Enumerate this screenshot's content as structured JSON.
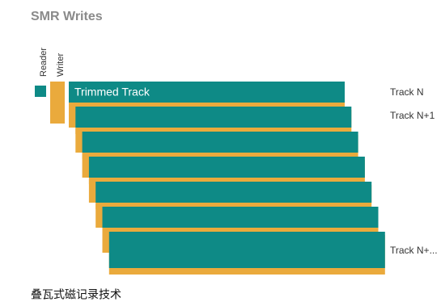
{
  "header": {
    "title": "SMR Writes"
  },
  "heads": {
    "reader": "Reader",
    "writer": "Writer"
  },
  "tracks": {
    "trimmed": "Trimmed Track",
    "labels": [
      "Track N",
      "Track N+1",
      "Track N+..."
    ]
  },
  "caption": "叠瓦式磁记录技术"
}
